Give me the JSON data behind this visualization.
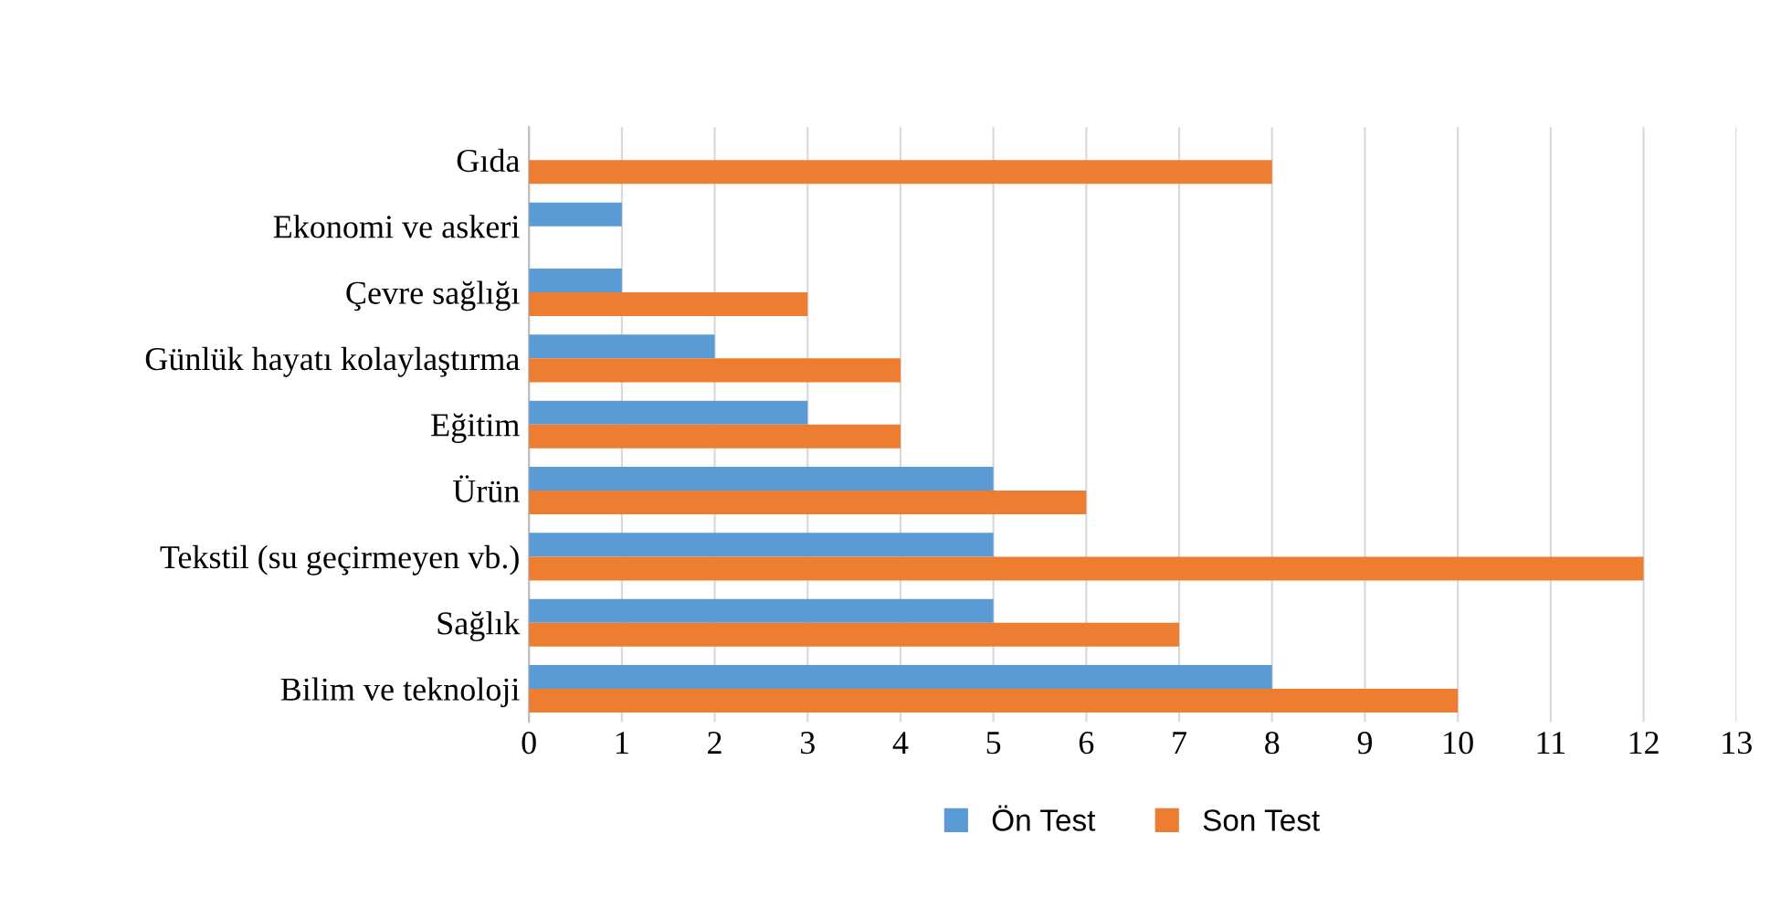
{
  "chart_data": {
    "type": "bar",
    "orientation": "horizontal",
    "categories": [
      "Gıda",
      "Ekonomi ve askeri",
      "Çevre sağlığı",
      "Günlük hayatı kolaylaştırma",
      "Eğitim",
      "Ürün",
      "Tekstil (su geçirmeyen vb.)",
      "Sağlık",
      "Bilim ve teknoloji"
    ],
    "series": [
      {
        "name": "Ön Test",
        "color": "#5b9bd5",
        "values": [
          null,
          1,
          1,
          2,
          3,
          5,
          5,
          5,
          8
        ]
      },
      {
        "name": "Son Test",
        "color": "#ed7d31",
        "values": [
          8,
          null,
          3,
          4,
          4,
          6,
          12,
          7,
          10
        ]
      }
    ],
    "xlim": [
      0,
      13
    ],
    "xticks": [
      0,
      1,
      2,
      3,
      4,
      5,
      6,
      7,
      8,
      9,
      10,
      11,
      12,
      13
    ],
    "grid": "x",
    "legend": "bottom"
  }
}
